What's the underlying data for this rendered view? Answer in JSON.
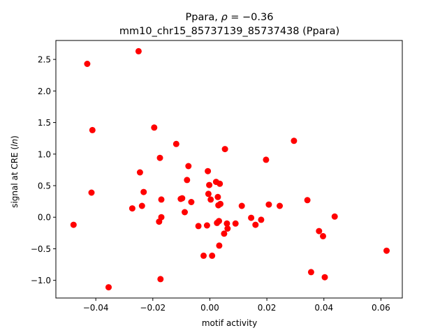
{
  "chart_data": {
    "type": "scatter",
    "title_line1": "Ppara, ρ = −0.36",
    "title_line2": "mm10_chr15_85737139_85737438 (Ppara)",
    "xlabel": "motif activity",
    "ylabel": "signal at CRE (ln)",
    "xlim": [
      -0.054,
      0.0675
    ],
    "ylim": [
      -1.28,
      2.8
    ],
    "xticks": [
      -0.04,
      -0.02,
      0.0,
      0.02,
      0.04,
      0.06
    ],
    "xtick_labels": [
      "−0.04",
      "−0.02",
      "0.00",
      "0.02",
      "0.04",
      "0.06"
    ],
    "yticks": [
      -1.0,
      -0.5,
      0.0,
      0.5,
      1.0,
      1.5,
      2.0,
      2.5
    ],
    "ytick_labels": [
      "−1.0",
      "−0.5",
      "0.0",
      "0.5",
      "1.0",
      "1.5",
      "2.0",
      "2.5"
    ],
    "marker_color": "#ff0000",
    "grid": false,
    "points": [
      {
        "x": -0.0478,
        "y": -0.12
      },
      {
        "x": -0.043,
        "y": 2.43
      },
      {
        "x": -0.0415,
        "y": 0.39
      },
      {
        "x": -0.0412,
        "y": 1.38
      },
      {
        "x": -0.0355,
        "y": -1.11
      },
      {
        "x": -0.0272,
        "y": 0.14
      },
      {
        "x": -0.025,
        "y": 2.63
      },
      {
        "x": -0.0245,
        "y": 0.71
      },
      {
        "x": -0.0238,
        "y": 0.18
      },
      {
        "x": -0.0232,
        "y": 0.4
      },
      {
        "x": -0.0195,
        "y": 1.42
      },
      {
        "x": -0.0178,
        "y": -0.07
      },
      {
        "x": -0.0175,
        "y": 0.94
      },
      {
        "x": -0.0173,
        "y": -0.98
      },
      {
        "x": -0.017,
        "y": 0.28
      },
      {
        "x": -0.017,
        "y": 0.0
      },
      {
        "x": -0.0118,
        "y": 1.16
      },
      {
        "x": -0.0102,
        "y": 0.29
      },
      {
        "x": -0.0097,
        "y": 0.3
      },
      {
        "x": -0.0088,
        "y": 0.08
      },
      {
        "x": -0.008,
        "y": 0.59
      },
      {
        "x": -0.0075,
        "y": 0.81
      },
      {
        "x": -0.0065,
        "y": 0.24
      },
      {
        "x": -0.004,
        "y": -0.14
      },
      {
        "x": -0.0022,
        "y": -0.61
      },
      {
        "x": -0.001,
        "y": -0.13
      },
      {
        "x": -0.0007,
        "y": 0.73
      },
      {
        "x": -0.0005,
        "y": 0.37
      },
      {
        "x": -0.0002,
        "y": 0.51
      },
      {
        "x": 0.0003,
        "y": 0.28
      },
      {
        "x": 0.0008,
        "y": -0.61
      },
      {
        "x": 0.0022,
        "y": 0.56
      },
      {
        "x": 0.0025,
        "y": -0.09
      },
      {
        "x": 0.0028,
        "y": 0.32
      },
      {
        "x": 0.003,
        "y": 0.19
      },
      {
        "x": 0.0032,
        "y": -0.06
      },
      {
        "x": 0.0033,
        "y": -0.45
      },
      {
        "x": 0.0035,
        "y": 0.53
      },
      {
        "x": 0.0037,
        "y": 0.21
      },
      {
        "x": 0.005,
        "y": -0.26
      },
      {
        "x": 0.0053,
        "y": 1.08
      },
      {
        "x": 0.006,
        "y": -0.1
      },
      {
        "x": 0.0062,
        "y": -0.18
      },
      {
        "x": 0.009,
        "y": -0.1
      },
      {
        "x": 0.0112,
        "y": 0.18
      },
      {
        "x": 0.0145,
        "y": -0.01
      },
      {
        "x": 0.016,
        "y": -0.12
      },
      {
        "x": 0.018,
        "y": -0.04
      },
      {
        "x": 0.0197,
        "y": 0.91
      },
      {
        "x": 0.0207,
        "y": 0.2
      },
      {
        "x": 0.0245,
        "y": 0.18
      },
      {
        "x": 0.0295,
        "y": 1.21
      },
      {
        "x": 0.0342,
        "y": 0.27
      },
      {
        "x": 0.0355,
        "y": -0.87
      },
      {
        "x": 0.0383,
        "y": -0.22
      },
      {
        "x": 0.0397,
        "y": -0.3
      },
      {
        "x": 0.0403,
        "y": -0.95
      },
      {
        "x": 0.0438,
        "y": 0.01
      },
      {
        "x": 0.062,
        "y": -0.53
      }
    ]
  }
}
